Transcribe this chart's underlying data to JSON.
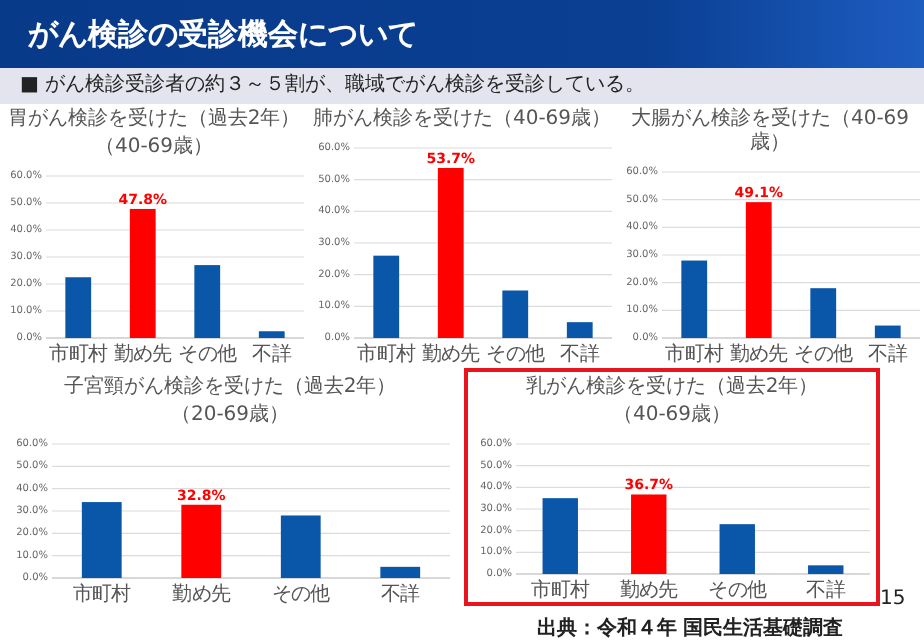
{
  "chart_data": [
    {
      "type": "other",
      "title": "がん検診の受診機会について",
      "subtitle": "■ がん検診受診者の約３～５割が、職域でがん検診を受診している。",
      "annotations": [
        "出典：令和４年 国民生活基礎調査",
        "15"
      ]
    },
    {
      "type": "bar",
      "title": "胃がん検診を受けた（過去2年）",
      "subtitle": "（40-69歳）",
      "categories": [
        "市町村",
        "勤め先",
        "その他",
        "不詳"
      ],
      "values": [
        22.5,
        47.8,
        27,
        2.5
      ],
      "colors": [
        "#0a56a8",
        "#ff0000",
        "#0a56a8",
        "#0a56a8"
      ],
      "value_labels": [
        null,
        "47.8%",
        null,
        null
      ],
      "ylim": [
        0,
        60
      ],
      "yticks": [
        {
          "value": 0,
          "label": "0.0%"
        },
        {
          "value": 10,
          "label": "10.0%"
        },
        {
          "value": 20,
          "label": "20.0%"
        },
        {
          "value": 30,
          "label": "30.0%"
        },
        {
          "value": 40,
          "label": "40.0%"
        },
        {
          "value": 50,
          "label": "50.0%"
        },
        {
          "value": 60,
          "label": "60.0%"
        }
      ],
      "grid": "y"
    },
    {
      "type": "bar",
      "title": "肺がん検診を受けた（40-69歳）",
      "categories": [
        "市町村",
        "勤め先",
        "その他",
        "不詳"
      ],
      "values": [
        26,
        53.7,
        15,
        5
      ],
      "colors": [
        "#0a56a8",
        "#ff0000",
        "#0a56a8",
        "#0a56a8"
      ],
      "value_labels": [
        null,
        "53.7%",
        null,
        null
      ],
      "ylim": [
        0,
        60
      ],
      "yticks": [
        {
          "value": 0,
          "label": "0.0%"
        },
        {
          "value": 10,
          "label": "10.0%"
        },
        {
          "value": 20,
          "label": "20.0%"
        },
        {
          "value": 30,
          "label": "30.0%"
        },
        {
          "value": 40,
          "label": "40.0%"
        },
        {
          "value": 50,
          "label": "50.0%"
        },
        {
          "value": 60,
          "label": "60.0%"
        }
      ],
      "grid": "y"
    },
    {
      "type": "bar",
      "title": "大腸がん検診を受けた（40-69歳）",
      "categories": [
        "市町村",
        "勤め先",
        "その他",
        "不詳"
      ],
      "values": [
        28,
        49.1,
        18,
        4.5
      ],
      "colors": [
        "#0a56a8",
        "#ff0000",
        "#0a56a8",
        "#0a56a8"
      ],
      "value_labels": [
        null,
        "49.1%",
        null,
        null
      ],
      "ylim": [
        0,
        60
      ],
      "yticks": [
        {
          "value": 0,
          "label": "0.0%"
        },
        {
          "value": 10,
          "label": "10.0%"
        },
        {
          "value": 20,
          "label": "20.0%"
        },
        {
          "value": 30,
          "label": "30.0%"
        },
        {
          "value": 40,
          "label": "40.0%"
        },
        {
          "value": 50,
          "label": "50.0%"
        },
        {
          "value": 60,
          "label": "60.0%"
        }
      ],
      "grid": "y"
    },
    {
      "type": "bar",
      "title": "子宮頸がん検診を受けた（過去2年）",
      "subtitle": "（20-69歳）",
      "categories": [
        "市町村",
        "勤め先",
        "その他",
        "不詳"
      ],
      "values": [
        34,
        32.8,
        28,
        5
      ],
      "colors": [
        "#0a56a8",
        "#ff0000",
        "#0a56a8",
        "#0a56a8"
      ],
      "value_labels": [
        null,
        "32.8%",
        null,
        null
      ],
      "ylim": [
        0,
        60
      ],
      "yticks": [
        {
          "value": 0,
          "label": "0.0%"
        },
        {
          "value": 10,
          "label": "10.0%"
        },
        {
          "value": 20,
          "label": "20.0%"
        },
        {
          "value": 30,
          "label": "30.0%"
        },
        {
          "value": 40,
          "label": "40.0%"
        },
        {
          "value": 50,
          "label": "50.0%"
        },
        {
          "value": 60,
          "label": "60.0%"
        }
      ],
      "grid": "y"
    },
    {
      "type": "bar",
      "title": "乳がん検診を受けた（過去2年）",
      "subtitle": "（40-69歳）",
      "categories": [
        "市町村",
        "勤め先",
        "その他",
        "不詳"
      ],
      "values": [
        35,
        36.7,
        23,
        4
      ],
      "colors": [
        "#0a56a8",
        "#ff0000",
        "#0a56a8",
        "#0a56a8"
      ],
      "value_labels": [
        null,
        "36.7%",
        null,
        null
      ],
      "ylim": [
        0,
        60
      ],
      "yticks": [
        {
          "value": 0,
          "label": "0.0%"
        },
        {
          "value": 10,
          "label": "10.0%"
        },
        {
          "value": 20,
          "label": "20.0%"
        },
        {
          "value": 30,
          "label": "30.0%"
        },
        {
          "value": 40,
          "label": "40.0%"
        },
        {
          "value": 50,
          "label": "50.0%"
        },
        {
          "value": 60,
          "label": "60.0%"
        }
      ],
      "grid": "y"
    }
  ]
}
